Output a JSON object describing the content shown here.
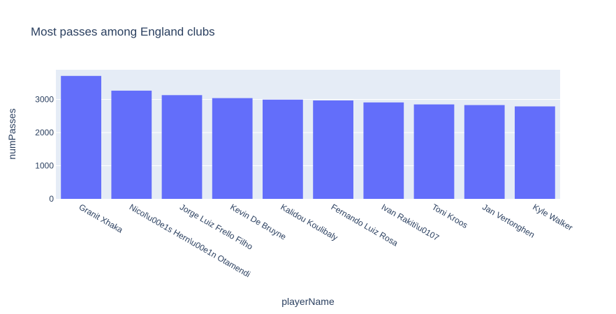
{
  "chart_data": {
    "type": "bar",
    "title": "Most passes among England clubs",
    "xlabel": "playerName",
    "ylabel": "numPasses",
    "categories": [
      "Granit Xhaka",
      "Nicol\\u00e1s Hern\\u00e1n Otamendi",
      "Jorge Luiz Frello Filho",
      "Kevin De Bruyne",
      "Kalidou Koulibaly",
      "Fernando Luiz Rosa",
      "Ivan Rakiti\\u0107",
      "Toni Kroos",
      "Jan Vertonghen",
      "Kyle Walker"
    ],
    "values": [
      3710,
      3265,
      3130,
      3040,
      2995,
      2970,
      2910,
      2850,
      2830,
      2790
    ],
    "ylim": [
      0,
      3895
    ],
    "yticks": [
      0,
      1000,
      2000,
      3000
    ],
    "bar_color": "#636efa",
    "plot_bgcolor": "#e5ecf6",
    "grid": true,
    "legend": "none"
  }
}
